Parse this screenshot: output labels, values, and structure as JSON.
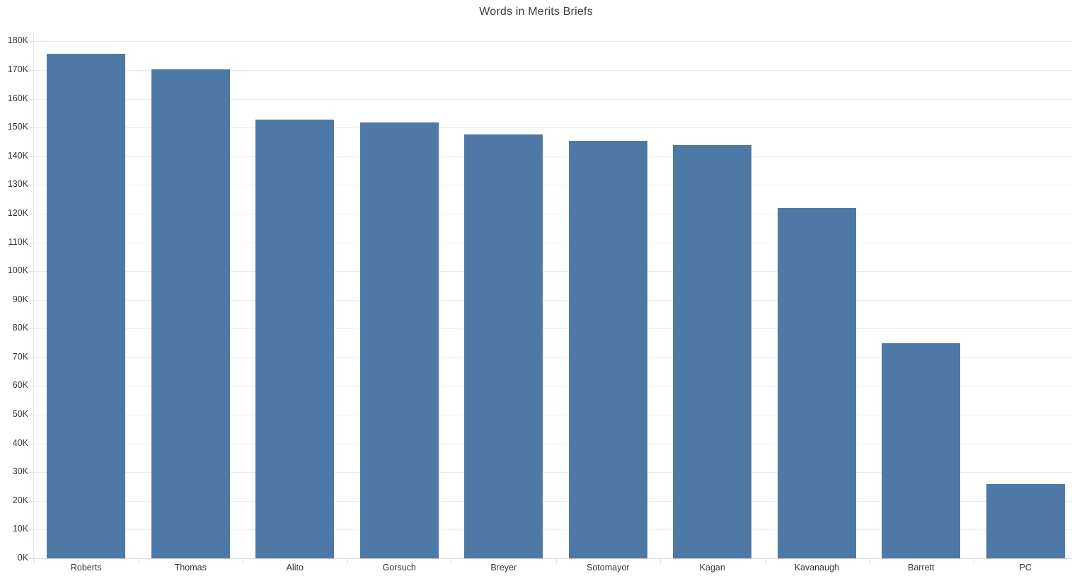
{
  "chart": {
    "bar_color": "#4e79a7",
    "grid_color": "#ececec",
    "axis_line_color": "#d9d9d9",
    "text_color": "#333333",
    "title_color": "#3c3c3c",
    "background_color": "#ffffff"
  },
  "chart_data": {
    "type": "bar",
    "title": "Words in Merits Briefs",
    "categories": [
      "Roberts",
      "Thomas",
      "Alito",
      "Gorsuch",
      "Breyer",
      "Sotomayor",
      "Kagan",
      "Kavanaugh",
      "Barrett",
      "PC"
    ],
    "values": [
      175700,
      170300,
      152800,
      151700,
      147700,
      145400,
      143900,
      122000,
      74900,
      25800
    ],
    "xlabel": "",
    "ylabel": "",
    "ylim": [
      0,
      183300
    ],
    "ytick_interval": 10000,
    "ytick_labels": [
      "0K",
      "10K",
      "20K",
      "30K",
      "40K",
      "50K",
      "60K",
      "70K",
      "80K",
      "90K",
      "100K",
      "110K",
      "120K",
      "130K",
      "140K",
      "150K",
      "160K",
      "170K",
      "180K"
    ],
    "grid": true,
    "legend": false
  }
}
